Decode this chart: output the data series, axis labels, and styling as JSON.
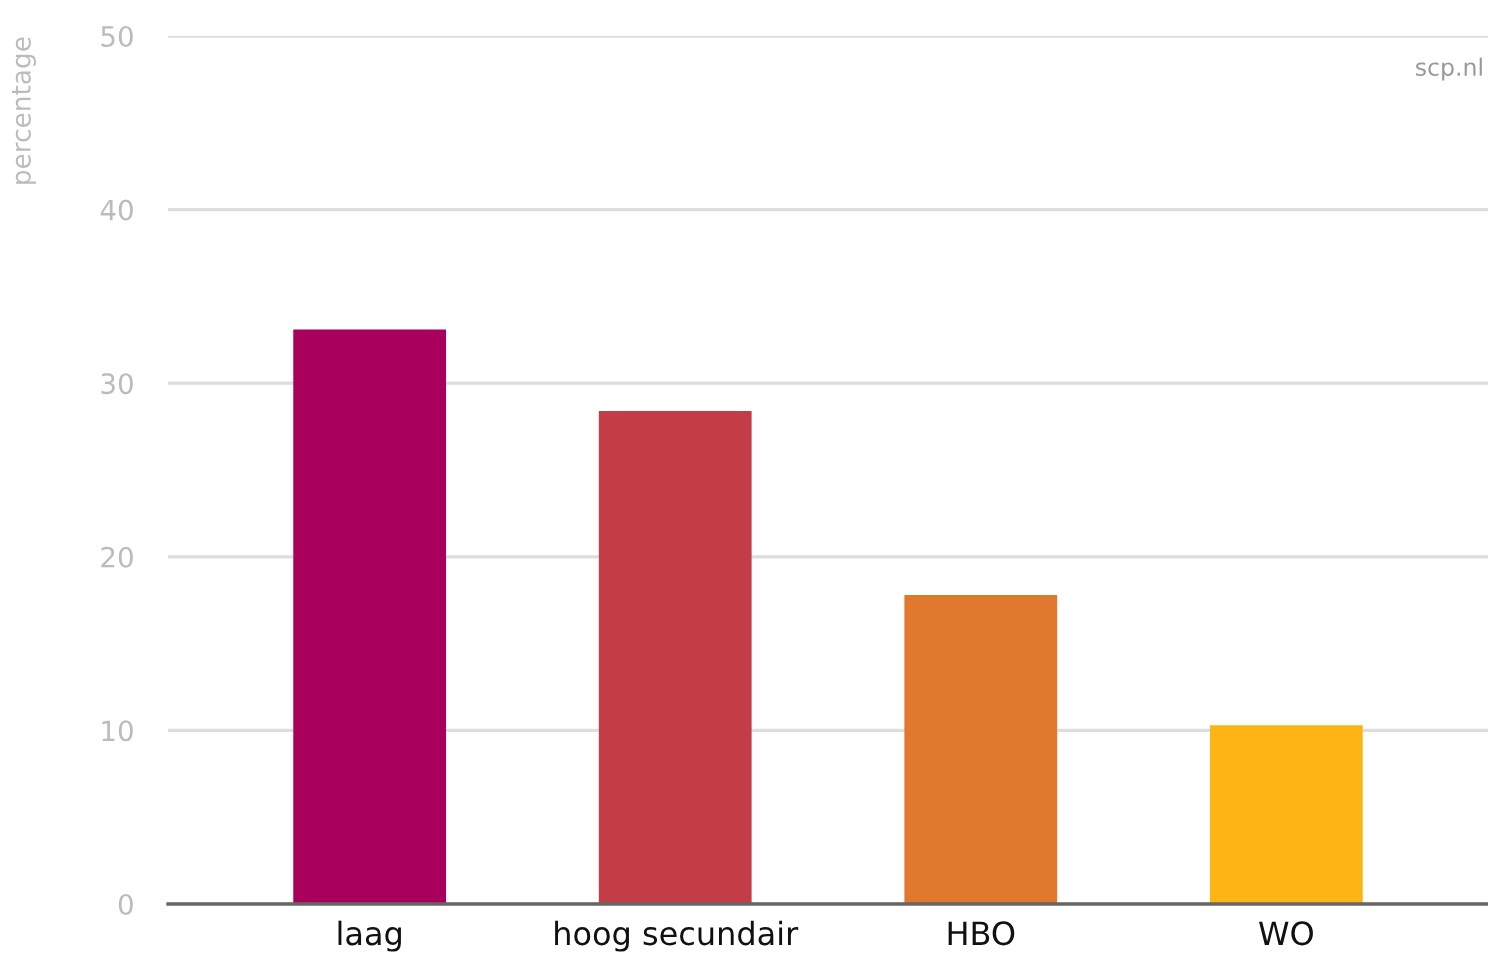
{
  "chart_data": {
    "type": "bar",
    "ylabel": "percentage",
    "annotations": [
      "scp.nl"
    ],
    "categories": [
      "laag",
      "hoog secundair",
      "HBO",
      "WO"
    ],
    "values": [
      33.1,
      28.4,
      17.8,
      10.3
    ],
    "colors": [
      "#a8005c",
      "#c43c46",
      "#e0782e",
      "#fdb515"
    ],
    "ylim": [
      0,
      50
    ],
    "yticks": [
      0,
      10,
      20,
      30,
      40,
      50
    ],
    "grid": "y"
  }
}
